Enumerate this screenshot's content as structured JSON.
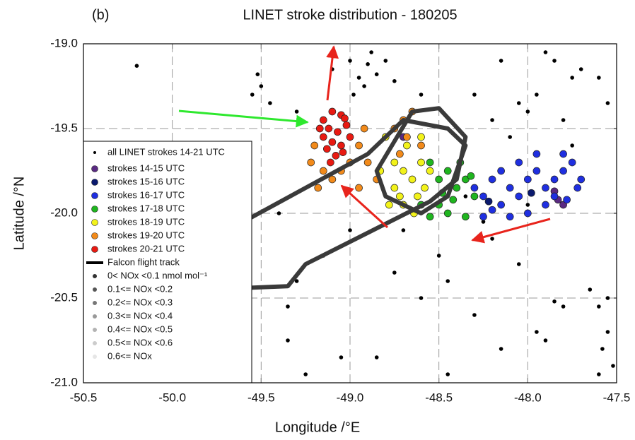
{
  "chart_data": {
    "type": "scatter",
    "panel_label": "(b)",
    "title": "LINET stroke distribution - 180205",
    "x_label": "Longitude /°E",
    "y_label": "Latitude /°N",
    "xlim": [
      -50.5,
      -47.5
    ],
    "ylim": [
      -21,
      -19
    ],
    "xticks": [
      -50.5,
      {
        "value": -50,
        "label": "-50.0"
      },
      -49.5,
      {
        "value": -49,
        "label": "-49.0"
      },
      -48.5,
      {
        "value": -48,
        "label": "-48.0"
      },
      -47.5
    ],
    "yticks": [
      {
        "value": -19,
        "label": "-19.0"
      },
      -19.5,
      {
        "value": -20,
        "label": "-20.0"
      },
      -20.5,
      {
        "value": -21,
        "label": "-21.0"
      }
    ],
    "grid": true,
    "legend": "lower left",
    "series": [
      {
        "name": "all LINET strokes 14-21 UTC",
        "color": "#000000",
        "x": [
          -50.2,
          -49.55,
          -49.5,
          -49.45,
          -49.52,
          -49.3,
          -49.1,
          -49.0,
          -48.95,
          -48.9,
          -48.85,
          -48.92,
          -48.88,
          -48.8,
          -48.98,
          -48.75,
          -48.6,
          -48.3,
          -48.15,
          -48.05,
          -48.0,
          -47.95,
          -47.9,
          -47.85,
          -47.75,
          -47.7,
          -47.8,
          -47.75,
          -48.1,
          -48.2,
          -47.6,
          -47.55,
          -49.65,
          -49.7,
          -49.4,
          -49.6,
          -49.3,
          -49.15,
          -49.0,
          -48.7,
          -48.5,
          -48.45,
          -48.3,
          -48.6,
          -48.75,
          -49.35,
          -49.35,
          -49.05,
          -49.25,
          -48.85,
          -48.45,
          -48.15,
          -47.95,
          -47.9,
          -48.05,
          -48.2,
          -47.8,
          -47.85,
          -47.65,
          -47.6,
          -47.55,
          -47.55,
          -47.58,
          -47.52,
          -47.6,
          -50.3,
          -50.35,
          -49.75,
          -49.8,
          -50.1,
          -48.35,
          -48.25,
          -48.0
        ],
        "y": [
          -19.13,
          -19.3,
          -19.25,
          -19.35,
          -19.18,
          -19.4,
          -19.15,
          -19.1,
          -19.2,
          -19.12,
          -19.18,
          -19.25,
          -19.05,
          -19.1,
          -19.3,
          -19.22,
          -19.3,
          -19.3,
          -19.1,
          -19.35,
          -19.4,
          -19.3,
          -19.05,
          -19.1,
          -19.2,
          -19.15,
          -19.45,
          -19.6,
          -19.55,
          -19.45,
          -19.2,
          -19.35,
          -19.95,
          -20.05,
          -20.0,
          -20.3,
          -20.4,
          -20.25,
          -20.1,
          -20.1,
          -20.25,
          -20.4,
          -20.6,
          -20.5,
          -20.35,
          -20.55,
          -20.75,
          -20.85,
          -20.95,
          -20.85,
          -20.95,
          -20.8,
          -20.7,
          -20.75,
          -20.3,
          -20.15,
          -20.55,
          -20.52,
          -20.45,
          -20.55,
          -20.5,
          -20.7,
          -20.8,
          -20.9,
          -20.95,
          -20.95,
          -20.75,
          -20.85,
          -20.6,
          -20.55,
          -19.9,
          -20.05,
          -19.95
        ]
      },
      {
        "name": "strokes 14-15 UTC",
        "color": "#5a2a82",
        "x": [
          -47.83,
          -47.8,
          -47.85,
          -48.7
        ],
        "y": [
          -19.92,
          -19.95,
          -19.87,
          -19.55
        ]
      },
      {
        "name": "strokes 15-16 UTC",
        "color": "#0a1a6e",
        "x": [
          -48.22,
          -47.98
        ],
        "y": [
          -19.93,
          -19.88
        ]
      },
      {
        "name": "strokes 16-17 UTC",
        "color": "#1f2fe0",
        "x": [
          -48.3,
          -48.25,
          -48.2,
          -48.15,
          -48.1,
          -48.05,
          -48.0,
          -47.95,
          -47.9,
          -47.85,
          -47.8,
          -47.75,
          -47.72,
          -47.9,
          -48.0,
          -48.1,
          -48.2,
          -47.85,
          -47.78,
          -48.05,
          -48.15,
          -47.95,
          -47.8,
          -48.25,
          -47.7
        ],
        "y": [
          -19.85,
          -19.9,
          -19.8,
          -19.95,
          -19.85,
          -19.9,
          -19.8,
          -19.75,
          -19.85,
          -19.8,
          -19.75,
          -19.7,
          -19.85,
          -19.95,
          -20.0,
          -20.02,
          -19.98,
          -19.9,
          -19.92,
          -19.7,
          -19.75,
          -19.65,
          -19.65,
          -20.02,
          -19.8
        ]
      },
      {
        "name": "strokes 17-18 UTC",
        "color": "#1fb51f",
        "x": [
          -48.55,
          -48.5,
          -48.45,
          -48.4,
          -48.35,
          -48.3,
          -48.5,
          -48.45,
          -48.55,
          -48.38,
          -48.42,
          -48.32,
          -48.48,
          -48.6,
          -48.35
        ],
        "y": [
          -19.7,
          -19.8,
          -19.75,
          -19.85,
          -19.8,
          -19.9,
          -19.95,
          -20.0,
          -20.02,
          -19.7,
          -19.92,
          -19.78,
          -19.88,
          -19.95,
          -20.02
        ]
      },
      {
        "name": "strokes 18-19 UTC",
        "color": "#f2f21a",
        "x": [
          -48.8,
          -48.75,
          -48.7,
          -48.65,
          -48.6,
          -48.62,
          -48.7,
          -48.75,
          -48.58,
          -48.55,
          -48.68,
          -48.72,
          -48.64,
          -48.78,
          -48.6,
          -48.83
        ],
        "y": [
          -19.55,
          -19.7,
          -19.75,
          -19.8,
          -19.7,
          -19.9,
          -19.95,
          -19.85,
          -19.85,
          -19.75,
          -19.6,
          -19.9,
          -20.0,
          -19.95,
          -19.55,
          -19.75
        ]
      },
      {
        "name": "strokes 19-20 UTC",
        "color": "#f28a1a",
        "x": [
          -49.2,
          -49.15,
          -49.1,
          -49.05,
          -48.95,
          -49.0,
          -49.18,
          -48.95,
          -48.9,
          -48.85,
          -48.75,
          -48.7,
          -48.65,
          -48.68,
          -48.6,
          -48.72,
          -49.22,
          -48.92
        ],
        "y": [
          -19.6,
          -19.75,
          -19.8,
          -19.75,
          -19.85,
          -19.7,
          -19.85,
          -19.6,
          -19.7,
          -19.8,
          -19.5,
          -19.45,
          -19.4,
          -19.55,
          -19.6,
          -19.65,
          -19.7,
          -19.5
        ]
      },
      {
        "name": "strokes 20-21 UTC",
        "color": "#e81a12",
        "x": [
          -49.1,
          -49.05,
          -49.15,
          -49.12,
          -49.07,
          -49.02,
          -49.1,
          -49.05,
          -49.13,
          -49.0,
          -49.08,
          -49.15,
          -49.03,
          -49.11,
          -49.04,
          -49.17
        ],
        "y": [
          -19.4,
          -19.42,
          -19.45,
          -19.5,
          -19.52,
          -19.48,
          -19.58,
          -19.6,
          -19.62,
          -19.55,
          -19.66,
          -19.55,
          -19.44,
          -19.7,
          -19.64,
          -19.5
        ]
      }
    ],
    "track": {
      "name": "Falcon flight track",
      "color": "#3a3a3a",
      "x": [
        -50.5,
        -49.35,
        -49.25,
        -48.55,
        -48.4,
        -48.35,
        -48.5,
        -48.65,
        -48.85,
        -48.8,
        -48.6,
        -48.45,
        -48.35,
        -48.45,
        -48.7,
        -48.9,
        -49.6,
        -49.7
      ],
      "y": [
        -20.48,
        -20.43,
        -20.3,
        -19.93,
        -19.8,
        -19.55,
        -19.38,
        -19.4,
        -19.75,
        -19.9,
        -20.0,
        -19.9,
        -19.6,
        -19.5,
        -19.45,
        -19.65,
        -20.05,
        -20.15
      ]
    },
    "nox_legend": [
      {
        "label": "0< NOx <0.1 nmol mol⁻¹",
        "color": "#333333"
      },
      {
        "label": "0.1<= NOx <0.2",
        "color": "#555555"
      },
      {
        "label": "0.2<= NOx <0.3",
        "color": "#777777"
      },
      {
        "label": "0.3<= NOx <0.4",
        "color": "#999999"
      },
      {
        "label": "0.4<= NOx <0.5",
        "color": "#b3b3b3"
      },
      {
        "label": "0.5<= NOx <0.6",
        "color": "#cccccc"
      },
      {
        "label": "0.6<= NOx",
        "color": "#e6e6e6"
      }
    ]
  }
}
